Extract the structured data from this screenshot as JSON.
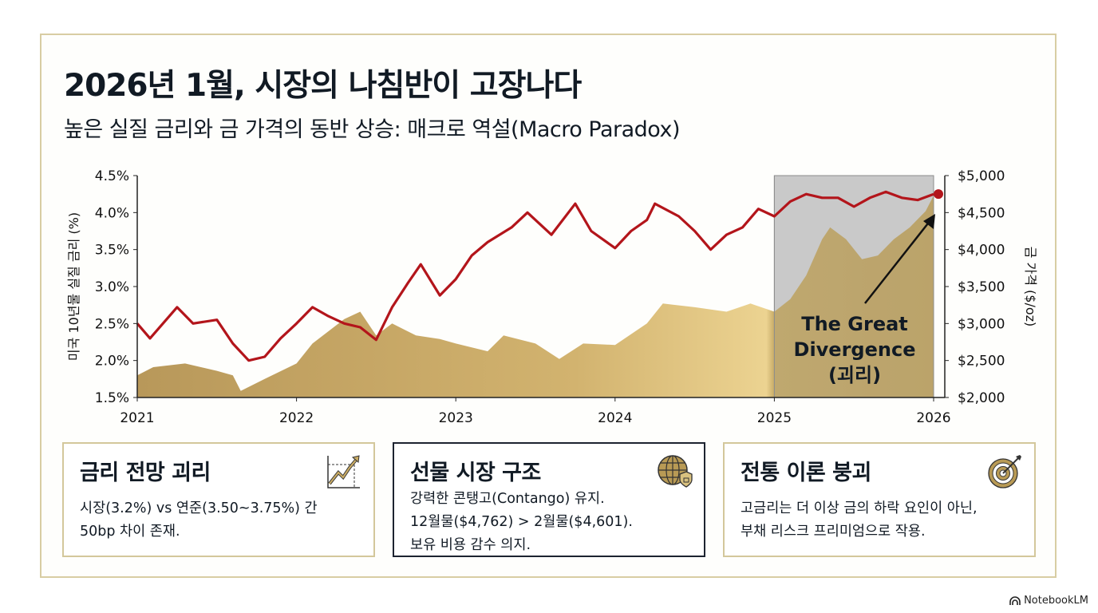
{
  "title": "2026년 1월, 시장의 나침반이 고장나다",
  "subtitle": "높은 실질 금리와 금 가격의 동반 상승: 매크로 역설(Macro Paradox)",
  "chart_data": {
    "type": "line+area",
    "xlabel": "",
    "x_ticks": [
      "2021",
      "2022",
      "2023",
      "2024",
      "2025",
      "2026"
    ],
    "xlim": [
      2021,
      2026
    ],
    "y_left": {
      "label": "미국 10년물 실질 금리 (%)",
      "ticks": [
        "1.5%",
        "2.0%",
        "2.5%",
        "3.0%",
        "3.5%",
        "4.0%",
        "4.5%"
      ],
      "lim": [
        1.5,
        4.5
      ]
    },
    "y_right": {
      "label": "금 가격 ($/oz)",
      "ticks": [
        "$2,000",
        "$2,500",
        "$3,000",
        "$3,500",
        "$4,000",
        "$4,500",
        "$5,000"
      ],
      "lim": [
        2000,
        5000
      ]
    },
    "series": [
      {
        "name": "미국 10년물 실질 금리",
        "axis": "left",
        "type": "line",
        "color": "#b3151b",
        "x": [
          2021.0,
          2021.08,
          2021.25,
          2021.35,
          2021.5,
          2021.6,
          2021.7,
          2021.8,
          2021.9,
          2022.0,
          2022.1,
          2022.2,
          2022.3,
          2022.4,
          2022.5,
          2022.6,
          2022.7,
          2022.78,
          2022.9,
          2023.0,
          2023.1,
          2023.2,
          2023.35,
          2023.45,
          2023.6,
          2023.75,
          2023.85,
          2024.0,
          2024.1,
          2024.2,
          2024.25,
          2024.4,
          2024.5,
          2024.6,
          2024.7,
          2024.8,
          2024.9,
          2025.0,
          2025.1,
          2025.2,
          2025.3,
          2025.4,
          2025.5,
          2025.6,
          2025.7,
          2025.8,
          2025.9,
          2026.0
        ],
        "y": [
          2.5,
          2.3,
          2.72,
          2.5,
          2.55,
          2.23,
          2.0,
          2.05,
          2.3,
          2.5,
          2.72,
          2.6,
          2.5,
          2.45,
          2.28,
          2.72,
          3.05,
          3.3,
          2.88,
          3.1,
          3.42,
          3.6,
          3.8,
          4.0,
          3.7,
          4.12,
          3.75,
          3.52,
          3.75,
          3.9,
          4.12,
          3.95,
          3.75,
          3.5,
          3.7,
          3.8,
          4.05,
          3.95,
          4.15,
          4.25,
          4.2,
          4.2,
          4.08,
          4.2,
          4.28,
          4.2,
          4.17,
          4.25
        ]
      },
      {
        "name": "금 가격",
        "axis": "right",
        "type": "area",
        "color": "#c9ab64",
        "x": [
          2021.0,
          2021.1,
          2021.3,
          2021.5,
          2021.6,
          2021.65,
          2021.8,
          2022.0,
          2022.1,
          2022.3,
          2022.4,
          2022.5,
          2022.6,
          2022.75,
          2022.9,
          2023.0,
          2023.2,
          2023.3,
          2023.5,
          2023.65,
          2023.8,
          2024.0,
          2024.2,
          2024.3,
          2024.5,
          2024.7,
          2024.85,
          2025.0,
          2025.1,
          2025.2,
          2025.3,
          2025.35,
          2025.45,
          2025.55,
          2025.65,
          2025.75,
          2025.85,
          2025.95,
          2026.0
        ],
        "y": [
          2300,
          2410,
          2460,
          2360,
          2300,
          2090,
          2250,
          2460,
          2730,
          3060,
          3160,
          2840,
          3000,
          2840,
          2790,
          2730,
          2625,
          2840,
          2730,
          2520,
          2730,
          2710,
          3000,
          3270,
          3220,
          3160,
          3270,
          3160,
          3330,
          3650,
          4140,
          4300,
          4140,
          3870,
          3920,
          4140,
          4300,
          4520,
          4730
        ]
      }
    ],
    "highlight": {
      "from": 2025,
      "to": 2026,
      "label_lines": [
        "The Great",
        "Divergence",
        "(괴리)"
      ]
    },
    "grid": false
  },
  "cards": [
    {
      "title": "금리 전망 괴리",
      "lines": [
        "시장(3.2%) vs 연준(3.50~3.75%) 간",
        "50bp 차이 존재."
      ],
      "icon": "trend-chart-icon"
    },
    {
      "title": "선물 시장 구조",
      "lines": [
        "강력한 콘탱고(Contango) 유지.",
        "12월물($4,762) > 2월물($4,601).",
        "보유 비용 감수 의지."
      ],
      "icon": "globe-shield-icon"
    },
    {
      "title": "전통 이론 붕괴",
      "lines": [
        "고금리는 더 이상 금의 하락 요인이 아닌,",
        "부채 리스크 프리미엄으로 작용."
      ],
      "icon": "target-icon"
    }
  ],
  "brand": "NotebookLM"
}
